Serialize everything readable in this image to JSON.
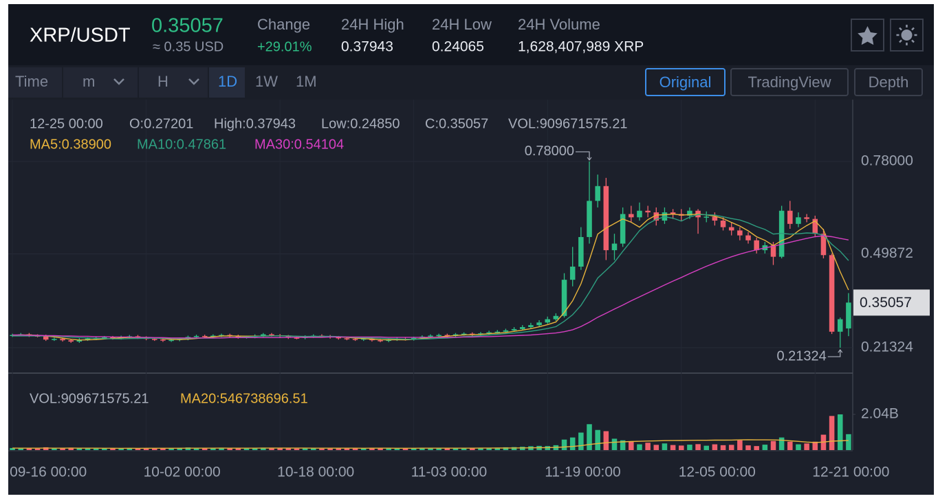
{
  "header": {
    "pair": "XRP/USDT",
    "price": "0.35057",
    "price_usd": "≈ 0.35 USD",
    "stats": [
      {
        "label": "Change",
        "value": "+29.01%"
      },
      {
        "label": "24H High",
        "value": "0.37943"
      },
      {
        "label": "24H Low",
        "value": "0.24065"
      },
      {
        "label": "24H Volume",
        "value": "1,628,407,989 XRP"
      }
    ]
  },
  "toolbar": {
    "time": "Time",
    "minute": "m",
    "hour": "H",
    "intervals": [
      "1D",
      "1W",
      "1M"
    ],
    "views": [
      "Original",
      "TradingView",
      "Depth"
    ]
  },
  "chart_data": {
    "type": "candlestick",
    "categories": [
      "09-16 00:00",
      null,
      null,
      null,
      null,
      null,
      null,
      null,
      null,
      null,
      null,
      null,
      null,
      null,
      null,
      null,
      "10-02 00:00",
      null,
      null,
      null,
      null,
      null,
      null,
      null,
      null,
      null,
      null,
      null,
      null,
      null,
      null,
      null,
      "10-18 00:00",
      null,
      null,
      null,
      null,
      null,
      null,
      null,
      null,
      null,
      null,
      null,
      null,
      null,
      null,
      null,
      "11-03 00:00",
      null,
      null,
      null,
      null,
      null,
      null,
      null,
      null,
      null,
      null,
      null,
      null,
      null,
      null,
      null,
      "11-19 00:00",
      null,
      null,
      null,
      null,
      null,
      null,
      null,
      null,
      null,
      null,
      null,
      null,
      null,
      null,
      null,
      "12-05 00:00",
      null,
      null,
      null,
      null,
      null,
      null,
      null,
      null,
      null,
      null,
      null,
      null,
      null,
      null,
      null,
      "12-21 00:00",
      null,
      null,
      null,
      null
    ],
    "open": [
      0.25,
      0.252,
      0.254,
      0.25,
      0.249,
      0.238,
      0.24,
      0.236,
      0.232,
      0.238,
      0.241,
      0.243,
      0.245,
      0.242,
      0.246,
      0.248,
      0.244,
      0.24,
      0.238,
      0.235,
      0.237,
      0.24,
      0.246,
      0.249,
      0.247,
      0.25,
      0.252,
      0.249,
      0.245,
      0.246,
      0.25,
      0.254,
      0.251,
      0.248,
      0.244,
      0.243,
      0.247,
      0.25,
      0.248,
      0.245,
      0.242,
      0.24,
      0.238,
      0.241,
      0.236,
      0.234,
      0.238,
      0.24,
      0.239,
      0.243,
      0.247,
      0.25,
      0.252,
      0.249,
      0.254,
      0.256,
      0.253,
      0.257,
      0.26,
      0.262,
      0.266,
      0.27,
      0.276,
      0.282,
      0.29,
      0.3,
      0.31,
      0.42,
      0.46,
      0.55,
      0.66,
      0.705,
      0.51,
      0.53,
      0.62,
      0.61,
      0.63,
      0.625,
      0.6,
      0.625,
      0.62,
      0.615,
      0.63,
      0.61,
      0.612,
      0.6,
      0.58,
      0.57,
      0.555,
      0.54,
      0.51,
      0.525,
      0.49,
      0.63,
      0.59,
      0.61,
      0.605,
      0.56,
      0.495,
      0.262,
      0.27201
    ],
    "high": [
      0.256,
      0.258,
      0.258,
      0.254,
      0.253,
      0.244,
      0.244,
      0.24,
      0.242,
      0.245,
      0.247,
      0.249,
      0.249,
      0.25,
      0.252,
      0.252,
      0.248,
      0.244,
      0.242,
      0.241,
      0.244,
      0.25,
      0.253,
      0.253,
      0.254,
      0.256,
      0.256,
      0.253,
      0.25,
      0.254,
      0.258,
      0.258,
      0.255,
      0.252,
      0.248,
      0.251,
      0.254,
      0.254,
      0.252,
      0.249,
      0.246,
      0.244,
      0.245,
      0.245,
      0.24,
      0.242,
      0.244,
      0.244,
      0.247,
      0.251,
      0.254,
      0.256,
      0.256,
      0.258,
      0.26,
      0.26,
      0.261,
      0.265,
      0.267,
      0.271,
      0.276,
      0.282,
      0.289,
      0.297,
      0.308,
      0.318,
      0.44,
      0.52,
      0.58,
      0.78,
      0.74,
      0.73,
      0.56,
      0.64,
      0.645,
      0.655,
      0.645,
      0.64,
      0.64,
      0.635,
      0.635,
      0.64,
      0.635,
      0.628,
      0.625,
      0.61,
      0.595,
      0.58,
      0.565,
      0.548,
      0.535,
      0.535,
      0.645,
      0.66,
      0.625,
      0.62,
      0.615,
      0.575,
      0.5,
      0.305,
      0.37943
    ],
    "low": [
      0.246,
      0.248,
      0.246,
      0.245,
      0.234,
      0.234,
      0.232,
      0.228,
      0.228,
      0.234,
      0.237,
      0.239,
      0.238,
      0.238,
      0.242,
      0.24,
      0.236,
      0.234,
      0.231,
      0.231,
      0.233,
      0.236,
      0.242,
      0.243,
      0.243,
      0.246,
      0.245,
      0.241,
      0.241,
      0.242,
      0.246,
      0.247,
      0.244,
      0.24,
      0.239,
      0.239,
      0.243,
      0.244,
      0.241,
      0.238,
      0.236,
      0.234,
      0.234,
      0.232,
      0.23,
      0.23,
      0.234,
      0.235,
      0.235,
      0.239,
      0.243,
      0.246,
      0.245,
      0.245,
      0.25,
      0.249,
      0.249,
      0.253,
      0.256,
      0.258,
      0.262,
      0.266,
      0.272,
      0.278,
      0.286,
      0.295,
      0.305,
      0.4,
      0.45,
      0.53,
      0.64,
      0.48,
      0.48,
      0.52,
      0.595,
      0.6,
      0.61,
      0.585,
      0.59,
      0.605,
      0.6,
      0.605,
      0.56,
      0.595,
      0.585,
      0.57,
      0.555,
      0.54,
      0.53,
      0.5,
      0.5,
      0.465,
      0.485,
      0.575,
      0.58,
      0.595,
      0.55,
      0.485,
      0.255,
      0.21324,
      0.2485
    ],
    "close": [
      0.252,
      0.254,
      0.25,
      0.249,
      0.238,
      0.24,
      0.236,
      0.232,
      0.238,
      0.241,
      0.243,
      0.245,
      0.242,
      0.246,
      0.248,
      0.244,
      0.24,
      0.238,
      0.235,
      0.237,
      0.24,
      0.246,
      0.249,
      0.247,
      0.25,
      0.252,
      0.249,
      0.245,
      0.246,
      0.25,
      0.254,
      0.251,
      0.248,
      0.244,
      0.243,
      0.247,
      0.25,
      0.248,
      0.245,
      0.242,
      0.24,
      0.238,
      0.241,
      0.236,
      0.234,
      0.238,
      0.24,
      0.239,
      0.243,
      0.247,
      0.25,
      0.252,
      0.249,
      0.254,
      0.256,
      0.253,
      0.257,
      0.26,
      0.262,
      0.266,
      0.27,
      0.276,
      0.282,
      0.29,
      0.3,
      0.31,
      0.42,
      0.46,
      0.55,
      0.66,
      0.705,
      0.51,
      0.53,
      0.62,
      0.61,
      0.63,
      0.625,
      0.6,
      0.625,
      0.62,
      0.615,
      0.63,
      0.61,
      0.612,
      0.6,
      0.58,
      0.57,
      0.555,
      0.54,
      0.51,
      0.525,
      0.49,
      0.63,
      0.59,
      0.61,
      0.605,
      0.56,
      0.495,
      0.262,
      0.3,
      0.35057
    ],
    "up_color": "#2ebd85",
    "down_color": "#f0616d",
    "ylim": [
      0.136,
      0.968
    ],
    "yticks": [
      {
        "value": 0.78,
        "label": "0.78000"
      },
      0.49872,
      0.21324
    ],
    "grid": true,
    "ohlc_info": [
      "12-25 00:00",
      "O:0.27201",
      "High:0.37943",
      "Low:0.24850",
      "C:0.35057",
      "VOL:909671575.21"
    ],
    "max_label": "0.78000",
    "min_label": "0.21324",
    "last_label": "0.35057",
    "series": [
      {
        "name": "MA5:0.38900",
        "color": "#e8b43c",
        "values": [
          0.251,
          0.252,
          0.252,
          0.251,
          0.2486,
          0.2462,
          0.2426,
          0.239,
          0.2368,
          0.2374,
          0.238,
          0.2398,
          0.2418,
          0.2434,
          0.2448,
          0.245,
          0.244,
          0.2432,
          0.241,
          0.2388,
          0.238,
          0.2392,
          0.2414,
          0.2438,
          0.2464,
          0.2488,
          0.2494,
          0.2486,
          0.2484,
          0.2484,
          0.2488,
          0.2492,
          0.2498,
          0.2494,
          0.248,
          0.2466,
          0.2464,
          0.2464,
          0.2466,
          0.2464,
          0.245,
          0.2426,
          0.2412,
          0.2394,
          0.2378,
          0.2374,
          0.2378,
          0.2374,
          0.2388,
          0.2414,
          0.2438,
          0.2462,
          0.2482,
          0.2504,
          0.2522,
          0.2528,
          0.2538,
          0.256,
          0.2576,
          0.2596,
          0.263,
          0.2668,
          0.2712,
          0.2768,
          0.2836,
          0.2916,
          0.3204,
          0.356,
          0.408,
          0.48,
          0.559,
          0.577,
          0.591,
          0.605,
          0.595,
          0.58,
          0.603,
          0.617,
          0.618,
          0.62,
          0.617,
          0.618,
          0.62,
          0.6174,
          0.6134,
          0.6064,
          0.5944,
          0.5834,
          0.569,
          0.551,
          0.54,
          0.524,
          0.539,
          0.549,
          0.569,
          0.585,
          0.599,
          0.572,
          0.5064,
          0.4444,
          0.389
        ]
      },
      {
        "name": "MA10:0.47861",
        "color": "#2e9e80",
        "values": [
          0.249,
          0.249,
          0.249,
          0.249,
          0.249,
          0.2486,
          0.2473,
          0.2455,
          0.2439,
          0.243,
          0.2421,
          0.2412,
          0.2404,
          0.2401,
          0.2411,
          0.2415,
          0.2419,
          0.2425,
          0.2422,
          0.2418,
          0.2415,
          0.2416,
          0.2423,
          0.2424,
          0.2426,
          0.2434,
          0.2443,
          0.245,
          0.2461,
          0.2474,
          0.2488,
          0.2493,
          0.2492,
          0.2489,
          0.2482,
          0.2477,
          0.2478,
          0.2481,
          0.248,
          0.2472,
          0.2458,
          0.2445,
          0.2438,
          0.243,
          0.2421,
          0.2412,
          0.2402,
          0.2393,
          0.2391,
          0.2396,
          0.2406,
          0.242,
          0.2428,
          0.2446,
          0.2468,
          0.2483,
          0.25,
          0.2521,
          0.254,
          0.2559,
          0.2579,
          0.2603,
          0.2636,
          0.2672,
          0.2716,
          0.2773,
          0.2936,
          0.3136,
          0.3424,
          0.3818,
          0.4253,
          0.4487,
          0.4735,
          0.5065,
          0.5375,
          0.5695,
          0.59,
          0.604,
          0.6115,
          0.6075,
          0.5985,
          0.6105,
          0.6185,
          0.6177,
          0.6167,
          0.6117,
          0.6062,
          0.6017,
          0.5932,
          0.5822,
          0.5732,
          0.5592,
          0.5612,
          0.559,
          0.56,
          0.5625,
          0.5615,
          0.5555,
          0.5277,
          0.5067,
          0.47861
        ]
      },
      {
        "name": "MA30:0.54104",
        "color": "#d63fc2",
        "values": [
          0.252,
          0.252,
          0.251,
          0.251,
          0.25,
          0.25,
          0.249,
          0.249,
          0.248,
          0.248,
          0.247,
          0.247,
          0.246,
          0.246,
          0.246,
          0.245,
          0.245,
          0.244,
          0.244,
          0.243,
          0.243,
          0.243,
          0.243,
          0.243,
          0.243,
          0.243,
          0.244,
          0.244,
          0.244,
          0.244,
          0.244,
          0.244,
          0.244,
          0.245,
          0.245,
          0.245,
          0.245,
          0.245,
          0.246,
          0.246,
          0.246,
          0.246,
          0.246,
          0.246,
          0.246,
          0.245,
          0.245,
          0.245,
          0.245,
          0.245,
          0.245,
          0.245,
          0.245,
          0.245,
          0.246,
          0.246,
          0.247,
          0.247,
          0.248,
          0.249,
          0.25,
          0.251,
          0.252,
          0.254,
          0.256,
          0.258,
          0.262,
          0.268,
          0.278,
          0.291,
          0.306,
          0.318,
          0.331,
          0.343,
          0.356,
          0.368,
          0.38,
          0.392,
          0.404,
          0.416,
          0.427,
          0.439,
          0.45,
          0.461,
          0.471,
          0.481,
          0.49,
          0.498,
          0.505,
          0.511,
          0.517,
          0.522,
          0.528,
          0.534,
          0.54,
          0.546,
          0.551,
          0.554,
          0.551,
          0.546,
          0.54104
        ]
      }
    ],
    "volume": {
      "type": "bar",
      "info": "VOL:909671575.21",
      "values": [
        120000000,
        95000000,
        100000000,
        90000000,
        160000000,
        110000000,
        100000000,
        140000000,
        105000000,
        95000000,
        90000000,
        85000000,
        80000000,
        95000000,
        100000000,
        90000000,
        110000000,
        100000000,
        120000000,
        95000000,
        130000000,
        150000000,
        120000000,
        100000000,
        110000000,
        120000000,
        100000000,
        110000000,
        95000000,
        105000000,
        140000000,
        115000000,
        100000000,
        105000000,
        90000000,
        95000000,
        100000000,
        85000000,
        90000000,
        100000000,
        110000000,
        120000000,
        95000000,
        130000000,
        125000000,
        100000000,
        95000000,
        90000000,
        100000000,
        120000000,
        130000000,
        115000000,
        100000000,
        125000000,
        110000000,
        100000000,
        120000000,
        130000000,
        140000000,
        160000000,
        170000000,
        190000000,
        220000000,
        240000000,
        230000000,
        280000000,
        600000000,
        720000000,
        1000000000,
        1480000000,
        1150000000,
        1080000000,
        650000000,
        560000000,
        480000000,
        330000000,
        420000000,
        300000000,
        380000000,
        290000000,
        260000000,
        310000000,
        340000000,
        250000000,
        330000000,
        280000000,
        300000000,
        560000000,
        270000000,
        230000000,
        310000000,
        520000000,
        720000000,
        480000000,
        330000000,
        380000000,
        480000000,
        880000000,
        1950000000,
        2040000000,
        909671575.21
      ],
      "ylim": [
        0,
        4200000000
      ],
      "yticks": [
        {
          "value": 2040000000,
          "label": "2.04B"
        }
      ],
      "ma": {
        "name": "MA20:546738696.51",
        "color": "#e8b43c",
        "values": [
          112000000,
          111000000,
          110000000,
          109000000,
          112000000,
          111000000,
          110000000,
          112000000,
          111000000,
          110000000,
          108000000,
          106000000,
          105000000,
          104000000,
          105000000,
          104000000,
          105000000,
          105000000,
          106000000,
          105000000,
          106000000,
          109000000,
          110000000,
          110000000,
          110000000,
          112000000,
          111000000,
          111000000,
          110000000,
          111000000,
          112000000,
          112000000,
          113000000,
          113000000,
          112000000,
          112000000,
          111000000,
          110000000,
          109000000,
          110000000,
          109000000,
          108000000,
          107000000,
          108000000,
          109000000,
          108000000,
          107000000,
          106000000,
          107000000,
          108000000,
          108000000,
          109000000,
          109000000,
          110000000,
          111000000,
          111000000,
          112000000,
          114000000,
          116000000,
          119000000,
          122000000,
          126000000,
          131000000,
          137000000,
          143000000,
          152000000,
          177000000,
          207000000,
          251000000,
          320000000,
          372000000,
          421000000,
          448000000,
          471000000,
          490000000,
          501000000,
          517000000,
          527000000,
          540000000,
          546000000,
          550000000,
          556000000,
          562000000,
          563000000,
          568000000,
          568000000,
          572000000,
          585000000,
          587000000,
          586000000,
          585000000,
          581000000,
          566000000,
          529000000,
          497000000,
          458000000,
          430000000,
          460000000,
          510000000,
          530000000,
          546738696.51
        ]
      }
    }
  }
}
